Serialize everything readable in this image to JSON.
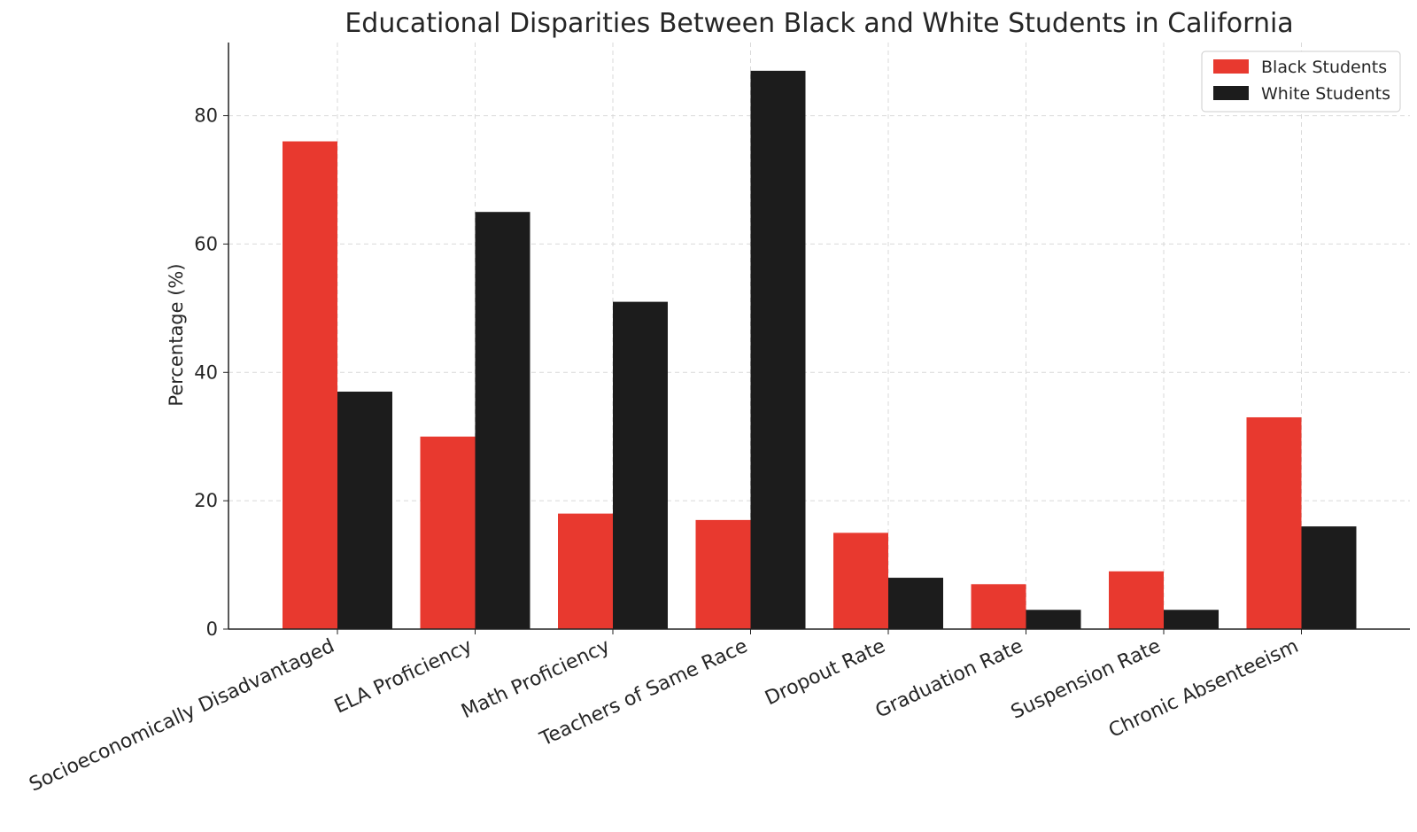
{
  "chart_data": {
    "type": "bar",
    "title": "Educational Disparities Between Black and White Students in California",
    "xlabel": "",
    "ylabel": "Percentage (%)",
    "ylim": [
      0,
      91.4
    ],
    "yticks": [
      0,
      20,
      40,
      60,
      80
    ],
    "grid": true,
    "legend_position": "top-right",
    "categories": [
      "Socioeconomically Disadvantaged",
      "ELA Proficiency",
      "Math Proficiency",
      "Teachers of Same Race",
      "Dropout Rate",
      "Graduation Rate",
      "Suspension Rate",
      "Chronic Absenteeism"
    ],
    "series": [
      {
        "name": "Black Students",
        "color": "#e8392f",
        "values": [
          76,
          30,
          18,
          17,
          15,
          7,
          9,
          33
        ]
      },
      {
        "name": "White Students",
        "color": "#1c1c1c",
        "values": [
          37,
          65,
          51,
          87,
          8,
          3,
          3,
          16
        ]
      }
    ]
  }
}
